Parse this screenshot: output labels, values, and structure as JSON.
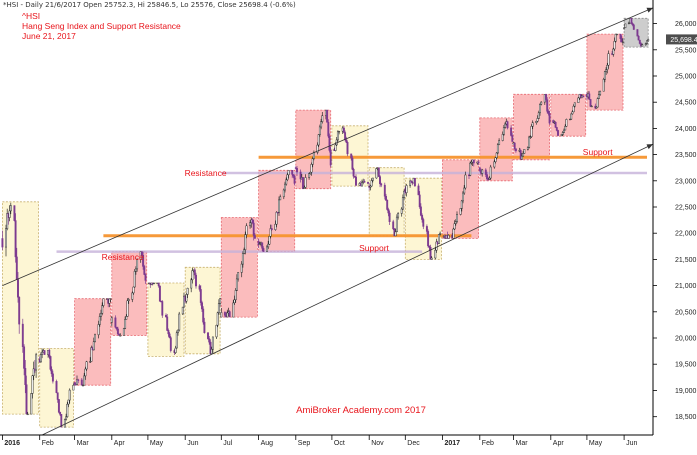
{
  "header": {
    "ticker_line": "*HSI - Daily 21/6/2017 Open 25752.3, Hi 25846.5, Lo 25576, Close 25698.4 (-0.6%)",
    "symbol": "^HSI",
    "title": "Hang Seng Index and Support Resistance",
    "date": "June 21, 2017"
  },
  "chart_data": {
    "type": "candlestick",
    "symbol": "^HSI",
    "title": "Hang Seng Index and Support Resistance",
    "subtitle": "June 21, 2017",
    "watermark": "AmiBroker Academy.com  2017",
    "last_price_label": "25,698.4",
    "last_close": 25698.4,
    "y_axis": {
      "side": "right",
      "ylim": [
        18150,
        26450
      ],
      "ticks": [
        18500,
        19000,
        19500,
        20000,
        20500,
        21000,
        21500,
        22000,
        22500,
        23000,
        23500,
        24000,
        24500,
        25000,
        25500,
        26000
      ],
      "tick_labels": [
        "18,500",
        "19,000",
        "19,500",
        "20,000",
        "20,500",
        "21,000",
        "21,500",
        "22,000",
        "22,500",
        "23,000",
        "23,500",
        "24,000",
        "24,500",
        "25,000",
        "25,500",
        "26,000"
      ]
    },
    "x_axis": {
      "range": [
        "2015-12-30",
        "2017-06-25"
      ],
      "month_ticks": [
        {
          "label": "2016",
          "date": "2016-01-01",
          "bold": true
        },
        {
          "label": "Feb",
          "date": "2016-02-01"
        },
        {
          "label": "Mar",
          "date": "2016-03-01"
        },
        {
          "label": "Apr",
          "date": "2016-04-01"
        },
        {
          "label": "May",
          "date": "2016-05-01"
        },
        {
          "label": "Jun",
          "date": "2016-06-01"
        },
        {
          "label": "Jul",
          "date": "2016-07-01"
        },
        {
          "label": "Aug",
          "date": "2016-08-01"
        },
        {
          "label": "Sep",
          "date": "2016-09-01"
        },
        {
          "label": "Oct",
          "date": "2016-10-01"
        },
        {
          "label": "Nov",
          "date": "2016-11-01"
        },
        {
          "label": "Dec",
          "date": "2016-12-01"
        },
        {
          "label": "2017",
          "date": "2017-01-01",
          "bold": true
        },
        {
          "label": "Feb",
          "date": "2017-02-01"
        },
        {
          "label": "Mar",
          "date": "2017-03-01"
        },
        {
          "label": "Apr",
          "date": "2017-04-01"
        },
        {
          "label": "May",
          "date": "2017-05-01"
        },
        {
          "label": "Jun",
          "date": "2017-06-01"
        }
      ]
    },
    "grid": false,
    "colors": {
      "up": "#2b2b2b",
      "down": "#7d3a8f",
      "up_box_fill": "#fab0b2",
      "up_box_border": "#e76a72",
      "down_box_fill": "#fdf5cc",
      "down_box_border": "#c7b06d",
      "last_box_fill": "#c8c8c8",
      "support_resistance": "#f6932e",
      "secondary_level": "#c5b1d9",
      "trend": "#333333",
      "annotation": "#e8141b"
    },
    "monthly": [
      {
        "month": "2016-01",
        "start": "2016-01-01",
        "end": "2016-01-31",
        "open": 21900,
        "high": 22600,
        "low": 18550,
        "close": 19680
      },
      {
        "month": "2016-02",
        "start": "2016-02-01",
        "end": "2016-02-29",
        "open": 19600,
        "high": 19800,
        "low": 18300,
        "close": 19100
      },
      {
        "month": "2016-03",
        "start": "2016-03-01",
        "end": "2016-03-31",
        "open": 19150,
        "high": 20750,
        "low": 19100,
        "close": 20750
      },
      {
        "month": "2016-04",
        "start": "2016-04-01",
        "end": "2016-04-30",
        "open": 20300,
        "high": 21650,
        "low": 20050,
        "close": 21100
      },
      {
        "month": "2016-05",
        "start": "2016-05-01",
        "end": "2016-05-31",
        "open": 21050,
        "high": 21050,
        "low": 19650,
        "close": 20800
      },
      {
        "month": "2016-06",
        "start": "2016-06-01",
        "end": "2016-06-30",
        "open": 20800,
        "high": 21350,
        "low": 19700,
        "close": 20750
      },
      {
        "month": "2016-07",
        "start": "2016-07-01",
        "end": "2016-07-31",
        "open": 20400,
        "high": 22300,
        "low": 20400,
        "close": 21900
      },
      {
        "month": "2016-08",
        "start": "2016-08-01",
        "end": "2016-08-31",
        "open": 21850,
        "high": 23200,
        "low": 21650,
        "close": 22950
      },
      {
        "month": "2016-09",
        "start": "2016-09-01",
        "end": "2016-09-30",
        "open": 23250,
        "high": 24350,
        "low": 22850,
        "close": 23300
      },
      {
        "month": "2016-10",
        "start": "2016-10-01",
        "end": "2016-10-31",
        "open": 23600,
        "high": 24050,
        "low": 22900,
        "close": 22950
      },
      {
        "month": "2016-11",
        "start": "2016-11-01",
        "end": "2016-11-30",
        "open": 22900,
        "high": 23250,
        "low": 21950,
        "close": 22800
      },
      {
        "month": "2016-12",
        "start": "2016-12-01",
        "end": "2016-12-31",
        "open": 22850,
        "high": 23050,
        "low": 21500,
        "close": 22000
      },
      {
        "month": "2017-01",
        "start": "2017-01-01",
        "end": "2017-01-31",
        "open": 21950,
        "high": 23400,
        "low": 21900,
        "close": 23350
      },
      {
        "month": "2017-02",
        "start": "2017-02-01",
        "end": "2017-02-28",
        "open": 23250,
        "high": 24200,
        "low": 23000,
        "close": 23750
      },
      {
        "month": "2017-03",
        "start": "2017-03-01",
        "end": "2017-03-31",
        "open": 23700,
        "high": 24650,
        "low": 23400,
        "close": 24100
      },
      {
        "month": "2017-04",
        "start": "2017-04-01",
        "end": "2017-04-30",
        "open": 24150,
        "high": 24650,
        "low": 23850,
        "close": 24600
      },
      {
        "month": "2017-05",
        "start": "2017-05-01",
        "end": "2017-05-31",
        "open": 24650,
        "high": 25800,
        "low": 24350,
        "close": 25650
      },
      {
        "month": "2017-06",
        "start": "2017-06-01",
        "end": "2017-06-21",
        "open": 25900,
        "high": 26100,
        "low": 25550,
        "close": 25698.4
      }
    ],
    "levels": [
      {
        "name": "Resistance",
        "value": 23450,
        "from": "2016-08-01",
        "to": "2017-06-20",
        "color": "orange",
        "label": "Resistance",
        "label_at": "2016-06-18",
        "label_above": 23150
      },
      {
        "name": "Support",
        "value": 23450,
        "from": "2016-08-01",
        "to": "2017-06-20",
        "color": "orange",
        "label": "Support",
        "label_at": "2017-05-10",
        "label_above": 23550
      },
      {
        "name": "Resistance",
        "value": 21950,
        "from": "2016-03-25",
        "to": "2017-01-25",
        "color": "orange",
        "label": "Resistance",
        "label_at": "2016-04-10",
        "label_above": 21550
      },
      {
        "name": "Support",
        "value": 21950,
        "from": "2016-03-25",
        "to": "2017-01-25",
        "color": "orange",
        "label": "Support",
        "label_at": "2016-11-05",
        "label_above": 21720
      },
      {
        "name": "Level",
        "value": 23150,
        "from": "2016-07-01",
        "to": "2017-06-20",
        "color": "lilac"
      },
      {
        "name": "Level",
        "value": 21650,
        "from": "2016-02-15",
        "to": "2016-12-15",
        "color": "lilac"
      }
    ],
    "annotations": [
      "Resistance",
      "Support",
      "Resistance",
      "Support"
    ],
    "trendlines": [
      {
        "from": {
          "date": "2016-01-01",
          "value": 21000
        },
        "to": {
          "date": "2017-06-25",
          "value": 26300
        },
        "arrow": true
      },
      {
        "from": {
          "date": "2016-02-03",
          "value": 18150
        },
        "to": {
          "date": "2017-06-25",
          "value": 23700
        },
        "arrow": true
      }
    ]
  }
}
